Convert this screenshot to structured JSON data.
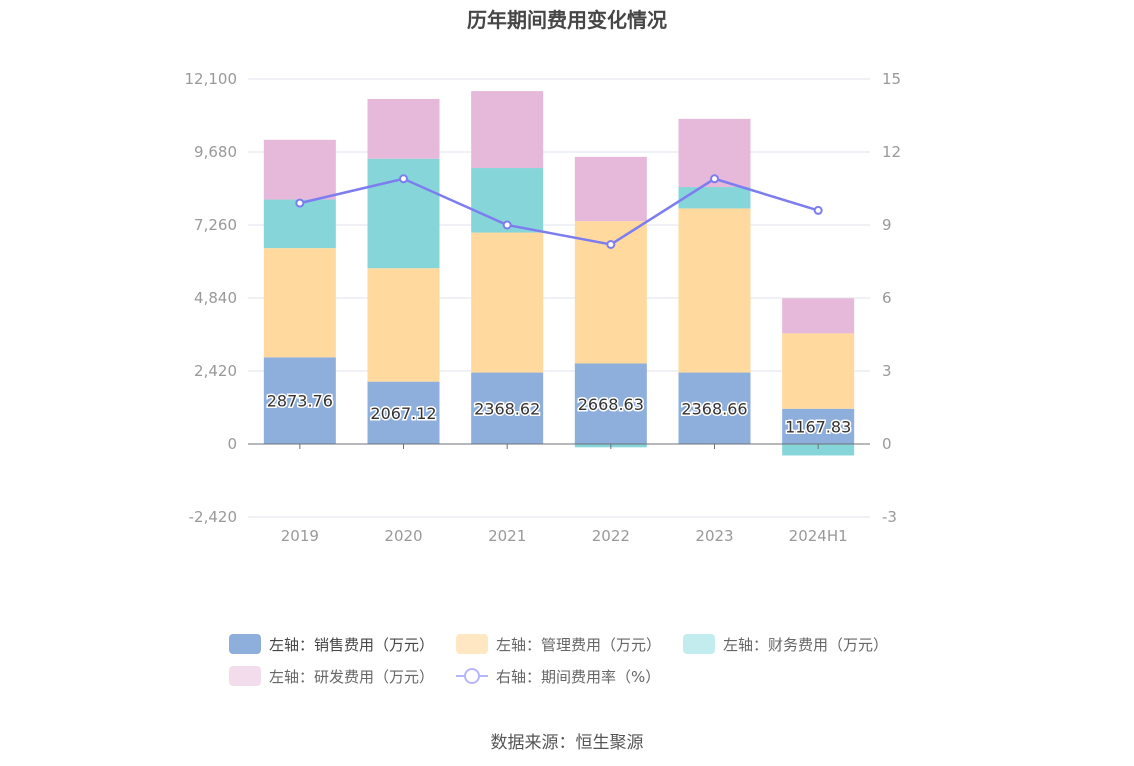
{
  "title": "历年期间费用变化情况",
  "source": "数据来源：恒生聚源",
  "colors": {
    "sales": "#8eaedc",
    "admin": "#ffd99e",
    "finance": "#86d6d9",
    "rd": "#e6b8d9",
    "rate_line": "#7d7df0",
    "axis_text": "#999999",
    "grid": "#e0e3ee"
  },
  "legend": {
    "sales": "左轴：销售费用（万元）",
    "admin": "左轴：管理费用（万元）",
    "finance": "左轴：财务费用（万元）",
    "rd": "左轴：研发费用（万元）",
    "rate": "右轴：期间费用率（%）"
  },
  "chart_data": {
    "type": "bar",
    "stacked": true,
    "title": "历年期间费用变化情况",
    "categories": [
      "2019",
      "2020",
      "2021",
      "2022",
      "2023",
      "2024H1"
    ],
    "y_left": {
      "ylim": [
        -2420,
        12100
      ],
      "ticks": [
        -2420,
        0,
        2420,
        4840,
        7260,
        9680,
        12100
      ],
      "tick_labels": [
        "-2,420",
        "0",
        "2,420",
        "4,840",
        "7,260",
        "9,680",
        "12,100"
      ]
    },
    "y_right": {
      "ylim": [
        -3,
        15
      ],
      "ticks": [
        -3,
        0,
        3,
        6,
        9,
        12,
        15
      ],
      "tick_labels": [
        "-3",
        "0",
        "3",
        "6",
        "9",
        "12",
        "15"
      ]
    },
    "grid": true,
    "legend_position": "bottom",
    "series": [
      {
        "key": "sales",
        "name": "左轴：销售费用（万元）",
        "axis": "left",
        "type": "bar",
        "values": [
          2873.76,
          2067.12,
          2368.62,
          2668.63,
          2368.66,
          1167.83
        ],
        "labels": [
          "2873.76",
          "2067.12",
          "2368.62",
          "2668.63",
          "2368.66",
          "1167.83"
        ]
      },
      {
        "key": "admin",
        "name": "左轴：管理费用（万元）",
        "axis": "left",
        "type": "bar",
        "values": [
          3620,
          3760,
          4640,
          4720,
          5440,
          2500
        ]
      },
      {
        "key": "finance",
        "name": "左轴：财务费用（万元）",
        "axis": "left",
        "type": "bar",
        "values": [
          1610,
          3630,
          2140,
          -110,
          710,
          -380
        ]
      },
      {
        "key": "rd",
        "name": "左轴：研发费用（万元）",
        "axis": "left",
        "type": "bar",
        "values": [
          1980,
          1980,
          2550,
          2130,
          2260,
          1160
        ]
      },
      {
        "key": "rate",
        "name": "右轴：期间费用率（%）",
        "axis": "right",
        "type": "line",
        "values": [
          9.9,
          10.9,
          9.0,
          8.2,
          10.9,
          9.6
        ]
      }
    ]
  }
}
